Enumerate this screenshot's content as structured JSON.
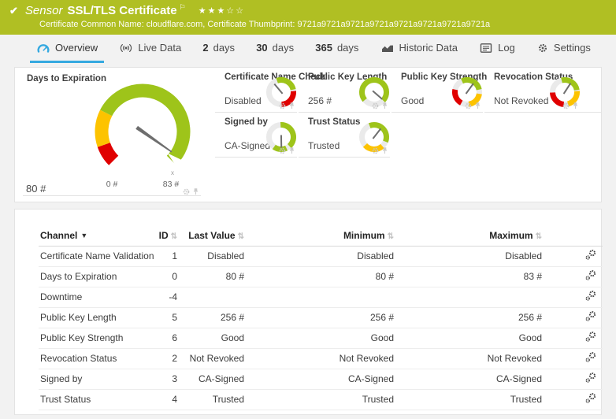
{
  "header": {
    "check": "✔",
    "type_label": "Sensor",
    "title": "SSL/TLS Certificate",
    "flag_icon": "⚐",
    "stars": "★★★☆☆",
    "subtitle": "Certificate Common Name: cloudflare.com, Certificate Thumbprint: 9721a9721a9721a9721a9721a9721a9721a9721a"
  },
  "tabs": [
    {
      "id": "overview",
      "icon": "gauge",
      "label": "Overview",
      "active": true
    },
    {
      "id": "live-data",
      "icon": "live",
      "label": "Live Data"
    },
    {
      "id": "2-days",
      "num": "2",
      "label": "days"
    },
    {
      "id": "30-days",
      "num": "30",
      "label": "days"
    },
    {
      "id": "365-days",
      "num": "365",
      "label": "days"
    },
    {
      "id": "historic-data",
      "icon": "chart",
      "label": "Historic Data"
    },
    {
      "id": "log",
      "icon": "log",
      "label": "Log"
    },
    {
      "id": "settings",
      "icon": "gear",
      "label": "Settings"
    }
  ],
  "colors": {
    "banner": "#b0bf23",
    "accent_blue": "#35a9e0",
    "green": "#9ec41a",
    "yellow": "#fdc300",
    "red": "#e00000",
    "base_ring": "#eaeaea",
    "needle": "#6e6e6e"
  },
  "chart_data": {
    "type": "gauge-set",
    "main_gauge": {
      "title": "Days to Expiration",
      "value": "80 #",
      "min_label": "0 #",
      "max_label": "83 #",
      "marker": "x",
      "needle_deg": 125,
      "segments": [
        {
          "c": "red",
          "a": [
            -135,
            -109
          ]
        },
        {
          "c": "yellow",
          "a": [
            -109,
            -63
          ]
        },
        {
          "c": "green",
          "a": [
            -63,
            135
          ]
        }
      ]
    },
    "small_gauges": [
      {
        "title": "Certificate Name Check",
        "value": "Disabled",
        "needle_deg": -40,
        "segments": [
          {
            "c": "green",
            "a": [
              -20,
              78
            ]
          },
          {
            "c": "red",
            "a": [
              85,
              178
            ]
          }
        ]
      },
      {
        "title": "Public Key Length",
        "value": "256 #",
        "needle_deg": 131,
        "segments": [
          {
            "c": "green",
            "a": [
              -130,
              133
            ]
          }
        ]
      },
      {
        "title": "Public Key Strength",
        "value": "Good",
        "needle_deg": 36,
        "segments": [
          {
            "c": "green",
            "a": [
              -25,
              78
            ]
          },
          {
            "c": "yellow",
            "a": [
              98,
              172
            ]
          },
          {
            "c": "red",
            "a": [
              208,
              282
            ]
          }
        ]
      },
      {
        "title": "Revocation Status",
        "value": "Not Revoked",
        "needle_deg": 33,
        "segments": [
          {
            "c": "green",
            "a": [
              -15,
              80
            ]
          },
          {
            "c": "yellow",
            "a": [
              85,
              165
            ]
          },
          {
            "c": "red",
            "a": [
              185,
              268
            ]
          }
        ]
      },
      {
        "title": "Signed by",
        "value": "CA-Signed",
        "needle_deg": 179,
        "segments": [
          {
            "c": "green",
            "a": [
              -3,
              138
            ]
          },
          {
            "c": "green",
            "a": [
              155,
              216
            ]
          }
        ]
      },
      {
        "title": "Trust Status",
        "value": "Trusted",
        "needle_deg": 38,
        "segments": [
          {
            "c": "green",
            "a": [
              -22,
              112
            ]
          },
          {
            "c": "yellow",
            "a": [
              138,
              228
            ]
          }
        ]
      }
    ]
  },
  "table": {
    "sort_desc_icon": "▼",
    "sort_both_icon": "⇅",
    "columns": [
      "Channel",
      "ID",
      "Last Value",
      "Minimum",
      "Maximum"
    ],
    "rows": [
      [
        "Certificate Name Validation",
        "1",
        "Disabled",
        "Disabled",
        "Disabled"
      ],
      [
        "Days to Expiration",
        "0",
        "80 #",
        "80 #",
        "83 #"
      ],
      [
        "Downtime",
        "-4",
        "",
        "",
        ""
      ],
      [
        "Public Key Length",
        "5",
        "256 #",
        "256 #",
        "256 #"
      ],
      [
        "Public Key Strength",
        "6",
        "Good",
        "Good",
        "Good"
      ],
      [
        "Revocation Status",
        "2",
        "Not Revoked",
        "Not Revoked",
        "Not Revoked"
      ],
      [
        "Signed by",
        "3",
        "CA-Signed",
        "CA-Signed",
        "CA-Signed"
      ],
      [
        "Trust Status",
        "4",
        "Trusted",
        "Trusted",
        "Trusted"
      ]
    ]
  }
}
